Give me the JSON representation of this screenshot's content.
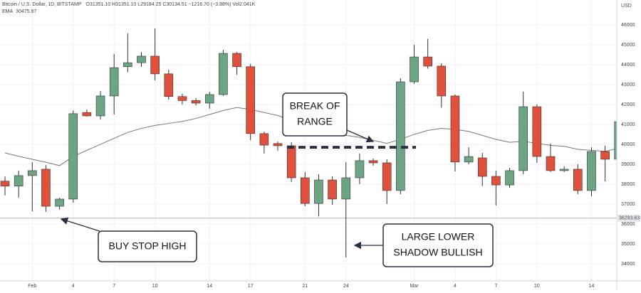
{
  "chart_data": {
    "type": "candlestick",
    "title": "Bitcoin / U.S. Dollar, 1D, BITSTAMP",
    "ohlc_header": "O31351.10 H31351.10 L29184.25 C30134.51 −1216.70 (−3.88%) Vol2.041K",
    "currency": "USD",
    "categories": [
      null,
      null,
      "Feb",
      null,
      null,
      "4",
      null,
      null,
      "7",
      null,
      null,
      "10",
      null,
      null,
      null,
      "14",
      null,
      null,
      "17",
      null,
      null,
      null,
      "21",
      null,
      null,
      "24",
      null,
      null,
      null,
      null,
      "Mar",
      null,
      null,
      "4",
      null,
      null,
      "7",
      null,
      null,
      "10",
      null,
      null,
      null,
      "14",
      null,
      null
    ],
    "open": [
      38150,
      37900,
      38430,
      38750,
      36890,
      37250,
      41600,
      41430,
      42430,
      43900,
      44100,
      44430,
      43540,
      42400,
      42200,
      42070,
      42500,
      44570,
      43900,
      40540,
      40040,
      39930,
      38320,
      37030,
      38210,
      37250,
      38320,
      39180,
      39070,
      37680,
      43140,
      44390,
      43930,
      42430,
      39110,
      39320,
      38390,
      37960,
      38680,
      41890,
      39390,
      38680,
      38750,
      37680,
      39640,
      39250
    ],
    "high": [
      38390,
      38680,
      39110,
      38960,
      37320,
      41700,
      41750,
      42680,
      44540,
      45570,
      44640,
      45820,
      43750,
      42540,
      42320,
      42640,
      44750,
      44640,
      44040,
      40640,
      40140,
      40110,
      38610,
      38500,
      38390,
      39110,
      39540,
      39290,
      39250,
      43320,
      45000,
      45300,
      44070,
      42500,
      39850,
      39570,
      38680,
      38820,
      42640,
      42000,
      40040,
      38900,
      39000,
      39850,
      39930,
      41860
    ],
    "low": [
      37430,
      37320,
      36640,
      36610,
      36720,
      37070,
      41390,
      41250,
      41500,
      43620,
      43890,
      43210,
      42250,
      42000,
      41960,
      41790,
      42430,
      43500,
      40210,
      39540,
      39680,
      38110,
      36890,
      36380,
      36960,
      34320,
      38000,
      38930,
      37000,
      37500,
      43040,
      43800,
      41840,
      38640,
      39000,
      37900,
      36930,
      37820,
      38500,
      39070,
      38610,
      38610,
      37500,
      37390,
      38140,
      39000
    ],
    "close": [
      37900,
      38430,
      38680,
      36890,
      37250,
      41540,
      41430,
      42430,
      43850,
      44100,
      44430,
      43540,
      42400,
      42200,
      42070,
      42500,
      44570,
      43900,
      40540,
      39960,
      39930,
      38320,
      37030,
      38210,
      37250,
      38320,
      39180,
      39070,
      37680,
      43140,
      44390,
      43930,
      42430,
      39110,
      39390,
      38390,
      37960,
      38680,
      41890,
      39390,
      38680,
      38750,
      37680,
      39640,
      39250,
      41140
    ],
    "up_color": "#6ba583",
    "down_color": "#e0513c",
    "ema": {
      "name": "EMA",
      "last": 30475.97,
      "color": "#777777",
      "values": [
        39570,
        39400,
        39250,
        39100,
        38930,
        39390,
        39700,
        40000,
        40300,
        40600,
        40800,
        40950,
        41050,
        41150,
        41300,
        41500,
        41700,
        41850,
        41750,
        41600,
        41450,
        41200,
        40950,
        40800,
        40600,
        40450,
        40350,
        40200,
        40050,
        40250,
        40500,
        40700,
        40800,
        40750,
        40650,
        40450,
        40250,
        40100,
        40150,
        40050,
        39950,
        39900,
        39750,
        39700,
        39650,
        39800
      ]
    },
    "price_line": 36293.63,
    "range_level": 39850,
    "annotations": [
      "BREAK OF",
      "RANGE",
      "BUY STOP HIGH",
      "LARGE LOWER",
      "SHADOW BULLISH"
    ],
    "ylim": [
      33140,
      47250
    ],
    "yticks": [
      34000,
      35000,
      36000,
      37000,
      38000,
      39000,
      40000,
      41000,
      42000,
      43000,
      44000,
      45000,
      46000
    ],
    "grid": true
  }
}
